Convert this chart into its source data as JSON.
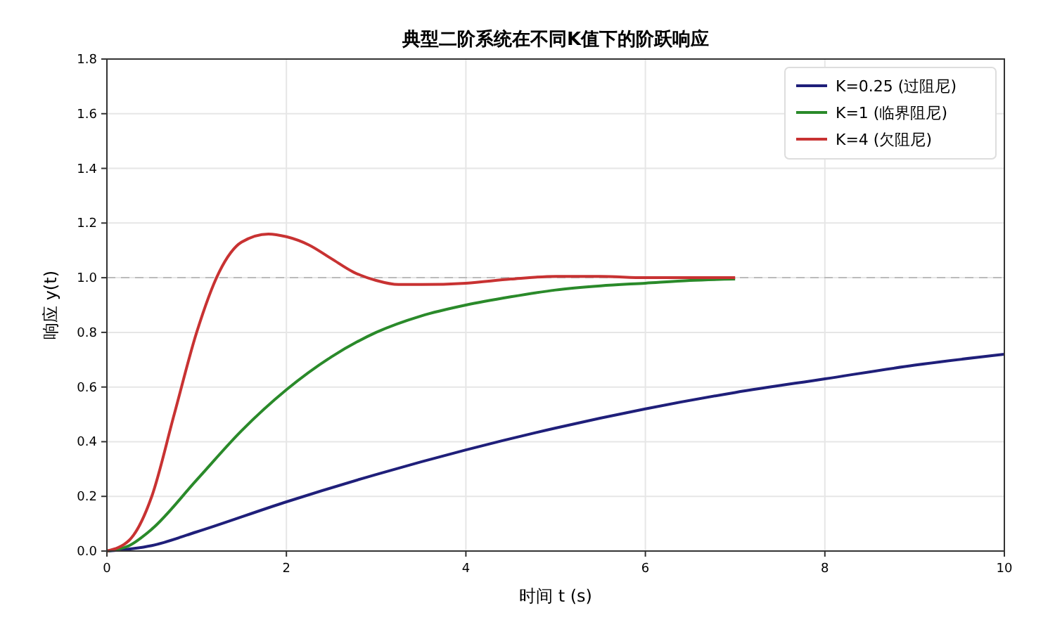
{
  "chart_data": {
    "type": "line",
    "title": "典型二阶系统在不同K值下的阶跃响应",
    "xlabel": "时间 t (s)",
    "ylabel": "响应 y(t)",
    "xlim": [
      0,
      10
    ],
    "xticks": [
      0,
      2,
      4,
      6,
      8,
      10
    ],
    "ylim": [
      0,
      1.8
    ],
    "yticks": [
      {
        "value": 0,
        "label": "0.0"
      },
      {
        "value": 0.2,
        "label": "0.2"
      },
      {
        "value": 0.4,
        "label": "0.4"
      },
      {
        "value": 0.6,
        "label": "0.6"
      },
      {
        "value": 0.8,
        "label": "0.8"
      },
      {
        "value": 1,
        "label": "1.0"
      },
      {
        "value": 1.2,
        "label": "1.2"
      },
      {
        "value": 1.4,
        "label": "1.4"
      },
      {
        "value": 1.6,
        "label": "1.6"
      },
      {
        "value": 1.8,
        "label": "1.8"
      }
    ],
    "grid": true,
    "legend": "top right",
    "line_style": "solid",
    "ref_lines": [
      {
        "axis": "y",
        "value": 1,
        "label": null,
        "color": "#bbbbbb",
        "line_style": "dashed"
      }
    ],
    "series": [
      {
        "name": "K=0.25 (过阻尼)",
        "color": "#1f1f7a",
        "x": [
          0,
          0.5,
          1,
          2,
          3,
          4,
          5,
          6,
          7,
          8,
          9,
          10
        ],
        "values": [
          0,
          0.02,
          0.07,
          0.18,
          0.28,
          0.37,
          0.45,
          0.52,
          0.58,
          0.63,
          0.68,
          0.72
        ]
      },
      {
        "name": "K=1 (临界阻尼)",
        "color": "#2a8a2a",
        "x": [
          0,
          0.25,
          0.5,
          1,
          1.5,
          2,
          2.5,
          3,
          3.5,
          4,
          4.5,
          5,
          5.5,
          6,
          6.5,
          7
        ],
        "values": [
          0,
          0.02,
          0.08,
          0.26,
          0.44,
          0.59,
          0.71,
          0.8,
          0.86,
          0.9,
          0.93,
          0.955,
          0.97,
          0.98,
          0.99,
          0.995
        ]
      },
      {
        "name": "K=4 (欠阻尼)",
        "color": "#c83232",
        "x": [
          0,
          0.25,
          0.5,
          0.75,
          1,
          1.25,
          1.5,
          1.8,
          2,
          2.25,
          2.5,
          2.75,
          3,
          3.25,
          3.5,
          4,
          4.5,
          5,
          5.5,
          6,
          7
        ],
        "values": [
          0,
          0.04,
          0.2,
          0.5,
          0.8,
          1.02,
          1.13,
          1.16,
          1.15,
          1.12,
          1.07,
          1.02,
          0.99,
          0.975,
          0.975,
          0.98,
          0.995,
          1.005,
          1.005,
          1,
          1
        ]
      }
    ]
  }
}
